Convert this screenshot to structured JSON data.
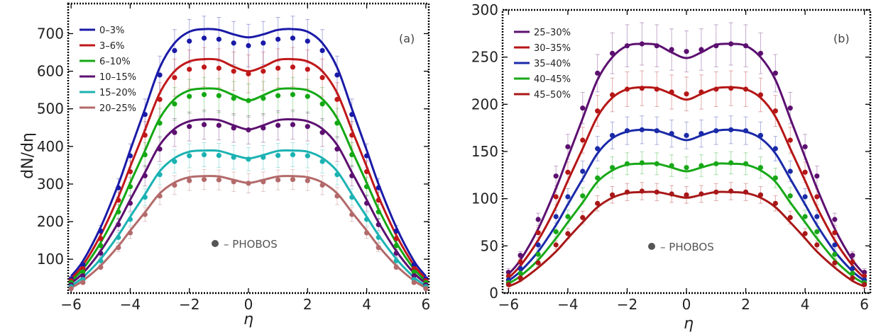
{
  "chart_data": [
    {
      "type": "line",
      "panel_label": "(a)",
      "xlabel": "η",
      "ylabel": "dN/dη",
      "xlim": [
        -6.1,
        6.1
      ],
      "ylim": [
        10,
        780
      ],
      "xticks": [
        -6,
        -4,
        -2,
        0,
        2,
        4,
        6
      ],
      "yticks": [
        100,
        200,
        300,
        400,
        500,
        600,
        700
      ],
      "xtick_labels": [
        "−6",
        "−4",
        "−2",
        "0",
        "2",
        "4",
        "6"
      ],
      "ytick_labels": [
        "100",
        "200",
        "300",
        "400",
        "500",
        "600",
        "700"
      ],
      "legend_position": "top-left",
      "marker_legend": {
        "label": "– PHOBOS",
        "color": "#555555"
      },
      "x": [
        -6,
        -5.6,
        -5,
        -4.4,
        -4,
        -3.5,
        -3,
        -2.5,
        -2,
        -1.5,
        -1,
        -0.5,
        0,
        0.5,
        1,
        1.5,
        2,
        2.5,
        3,
        3.5,
        4,
        4.4,
        5,
        5.6,
        6
      ],
      "series": [
        {
          "name": "0–3%",
          "color": "#1a1aa8",
          "peak": 710,
          "line": [
            55,
            95,
            185,
            300,
            390,
            500,
            610,
            675,
            705,
            712,
            710,
            698,
            690,
            698,
            710,
            712,
            705,
            675,
            610,
            500,
            390,
            300,
            185,
            95,
            55
          ],
          "points": [
            48,
            85,
            175,
            290,
            375,
            485,
            590,
            655,
            680,
            688,
            685,
            675,
            668,
            675,
            685,
            688,
            680,
            655,
            590,
            485,
            375,
            290,
            175,
            85,
            48
          ]
        },
        {
          "name": "3–6%",
          "color": "#c0181a",
          "peak": 630,
          "line": [
            48,
            84,
            164,
            266,
            346,
            444,
            542,
            600,
            626,
            632,
            630,
            612,
            600,
            612,
            630,
            632,
            626,
            600,
            542,
            444,
            346,
            266,
            164,
            84,
            48
          ],
          "points": [
            43,
            75,
            155,
            257,
            333,
            430,
            525,
            583,
            605,
            611,
            608,
            600,
            593,
            600,
            608,
            611,
            605,
            583,
            525,
            430,
            333,
            257,
            155,
            75,
            43
          ]
        },
        {
          "name": "6–10%",
          "color": "#14a814",
          "peak": 552,
          "line": [
            42,
            74,
            144,
            233,
            303,
            389,
            475,
            526,
            549,
            554,
            552,
            536,
            522,
            536,
            552,
            554,
            549,
            526,
            475,
            389,
            303,
            233,
            144,
            74,
            42
          ],
          "points": [
            38,
            66,
            136,
            226,
            293,
            378,
            462,
            513,
            533,
            538,
            535,
            528,
            522,
            528,
            535,
            538,
            533,
            513,
            462,
            378,
            293,
            226,
            136,
            66,
            38
          ]
        },
        {
          "name": "10–15%",
          "color": "#5c1070",
          "peak": 470,
          "line": [
            36,
            63,
            122,
            198,
            258,
            331,
            404,
            447,
            467,
            472,
            470,
            456,
            445,
            456,
            470,
            472,
            467,
            447,
            404,
            331,
            258,
            198,
            122,
            63,
            36
          ],
          "points": [
            32,
            56,
            116,
            192,
            249,
            322,
            393,
            437,
            453,
            458,
            456,
            449,
            444,
            449,
            456,
            458,
            453,
            437,
            393,
            322,
            249,
            192,
            116,
            56,
            32
          ]
        },
        {
          "name": "15–20%",
          "color": "#1cb2b2",
          "peak": 388,
          "line": [
            29,
            52,
            101,
            164,
            213,
            273,
            334,
            369,
            386,
            389,
            388,
            377,
            368,
            377,
            388,
            389,
            386,
            369,
            334,
            273,
            213,
            164,
            101,
            52,
            29
          ],
          "points": [
            27,
            46,
            96,
            158,
            206,
            265,
            325,
            360,
            375,
            378,
            376,
            371,
            366,
            371,
            376,
            378,
            375,
            360,
            325,
            265,
            206,
            158,
            96,
            46,
            27
          ]
        },
        {
          "name": "20–25%",
          "color": "#b36a6a",
          "peak": 320,
          "line": [
            24,
            43,
            83,
            135,
            176,
            225,
            275,
            304,
            318,
            321,
            320,
            311,
            303,
            311,
            320,
            321,
            318,
            304,
            275,
            225,
            176,
            135,
            83,
            43,
            24
          ],
          "points": [
            22,
            38,
            79,
            131,
            170,
            219,
            268,
            297,
            309,
            312,
            311,
            306,
            302,
            306,
            311,
            312,
            309,
            297,
            268,
            219,
            170,
            131,
            79,
            38,
            22
          ]
        }
      ]
    },
    {
      "type": "line",
      "panel_label": "(b)",
      "xlabel": "η",
      "ylabel": "",
      "xlim": [
        -6.2,
        6.2
      ],
      "ylim": [
        0,
        300
      ],
      "xticks": [
        -6,
        -4,
        -2,
        0,
        2,
        4,
        6
      ],
      "yticks": [
        0,
        50,
        100,
        150,
        200,
        250,
        300
      ],
      "xtick_labels": [
        "−6",
        "−4",
        "−2",
        "0",
        "2",
        "4",
        "6"
      ],
      "ytick_labels": [
        "0",
        "50",
        "100",
        "150",
        "200",
        "250",
        "300"
      ],
      "legend_position": "top-left",
      "marker_legend": {
        "label": "– PHOBOS",
        "color": "#555555"
      },
      "x": [
        -6,
        -5.6,
        -5,
        -4.4,
        -4,
        -3.5,
        -3,
        -2.5,
        -2,
        -1.5,
        -1,
        -0.5,
        0,
        0.5,
        1,
        1.5,
        2,
        2.5,
        3,
        3.5,
        4,
        4.4,
        5,
        5.6,
        6
      ],
      "series": [
        {
          "name": "25–30%",
          "color": "#5c1070",
          "peak": 263,
          "line": [
            20,
            35,
            68,
            111,
            144,
            185,
            226,
            250,
            262,
            264,
            263,
            255,
            249,
            255,
            263,
            264,
            262,
            250,
            226,
            185,
            144,
            111,
            68,
            35,
            20
          ],
          "points": [
            22,
            40,
            78,
            124,
            155,
            196,
            233,
            254,
            262,
            264,
            262,
            258,
            256,
            258,
            262,
            264,
            262,
            254,
            233,
            196,
            155,
            124,
            78,
            40,
            22
          ]
        },
        {
          "name": "30–35%",
          "color": "#b51616",
          "peak": 217,
          "line": [
            16,
            29,
            56,
            91,
            119,
            153,
            187,
            207,
            216,
            218,
            217,
            211,
            205,
            211,
            217,
            218,
            216,
            207,
            187,
            153,
            119,
            91,
            56,
            29,
            16
          ],
          "points": [
            18,
            33,
            64,
            102,
            128,
            162,
            193,
            210,
            216,
            217,
            216,
            213,
            211,
            213,
            216,
            217,
            216,
            210,
            193,
            162,
            128,
            102,
            64,
            33,
            18
          ]
        },
        {
          "name": "35–40%",
          "color": "#1a2aa8",
          "peak": 172,
          "line": [
            13,
            23,
            44,
            72,
            94,
            121,
            148,
            164,
            171,
            173,
            172,
            167,
            162,
            167,
            172,
            173,
            171,
            164,
            148,
            121,
            94,
            72,
            44,
            23,
            13
          ],
          "points": [
            14,
            26,
            51,
            81,
            102,
            129,
            153,
            167,
            172,
            173,
            172,
            169,
            167,
            169,
            172,
            173,
            172,
            167,
            153,
            129,
            102,
            81,
            51,
            26,
            14
          ]
        },
        {
          "name": "40–45%",
          "color": "#18a818",
          "peak": 137,
          "line": [
            10,
            18,
            35,
            58,
            75,
            96,
            118,
            130,
            136,
            137,
            137,
            133,
            129,
            133,
            137,
            137,
            136,
            130,
            118,
            96,
            75,
            58,
            35,
            18,
            10
          ],
          "points": [
            11,
            21,
            41,
            65,
            81,
            103,
            122,
            133,
            137,
            138,
            137,
            135,
            133,
            135,
            137,
            138,
            137,
            133,
            122,
            103,
            81,
            65,
            41,
            21,
            11
          ]
        },
        {
          "name": "45–50%",
          "color": "#a81818",
          "peak": 107,
          "line": [
            7,
            13,
            27,
            44,
            58,
            75,
            91,
            101,
            106,
            107,
            107,
            104,
            101,
            104,
            107,
            107,
            106,
            101,
            91,
            75,
            58,
            44,
            27,
            13,
            7
          ],
          "points": [
            9,
            16,
            32,
            51,
            63,
            80,
            95,
            104,
            107,
            108,
            107,
            105,
            104,
            105,
            107,
            108,
            107,
            104,
            95,
            80,
            63,
            51,
            32,
            16,
            9
          ]
        }
      ]
    }
  ]
}
